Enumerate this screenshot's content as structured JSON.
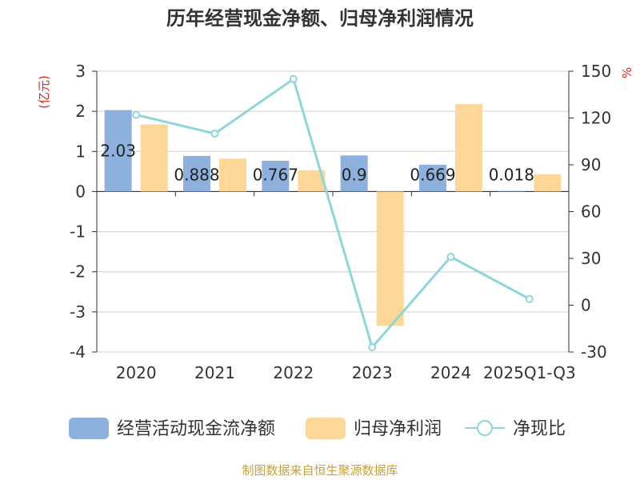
{
  "chart_data": {
    "type": "bar+line",
    "title": "历年经营现金净额、归母净利润情况",
    "y_left_unit": "(亿元)",
    "y_right_unit": "%",
    "categories": [
      "2020",
      "2021",
      "2022",
      "2023",
      "2024",
      "2025Q1-Q3"
    ],
    "y_left": {
      "min": -4,
      "max": 3,
      "ticks": [
        3,
        2,
        1,
        0,
        -1,
        -2,
        -3,
        -4
      ]
    },
    "y_right": {
      "min": -30,
      "max": 150,
      "ticks": [
        150,
        120,
        90,
        60,
        30,
        0,
        -30
      ]
    },
    "series": [
      {
        "name": "经营活动现金流净额",
        "type": "bar",
        "axis": "left",
        "color": "#8eb0dc",
        "values": [
          2.03,
          0.888,
          0.767,
          0.9,
          0.669,
          0.018
        ],
        "labels": [
          "2.03",
          "0.888",
          "0.767",
          "0.9",
          "0.669",
          "0.018"
        ]
      },
      {
        "name": "归母净利润",
        "type": "bar",
        "axis": "left",
        "color": "#fdd797",
        "values": [
          1.67,
          0.82,
          0.53,
          -3.35,
          2.18,
          0.43
        ]
      },
      {
        "name": "净现比",
        "type": "line",
        "axis": "right",
        "color": "#8ed6d8",
        "values": [
          122,
          110,
          145,
          -27,
          31,
          4
        ]
      }
    ],
    "source": "制图数据来自恒生聚源数据库"
  }
}
